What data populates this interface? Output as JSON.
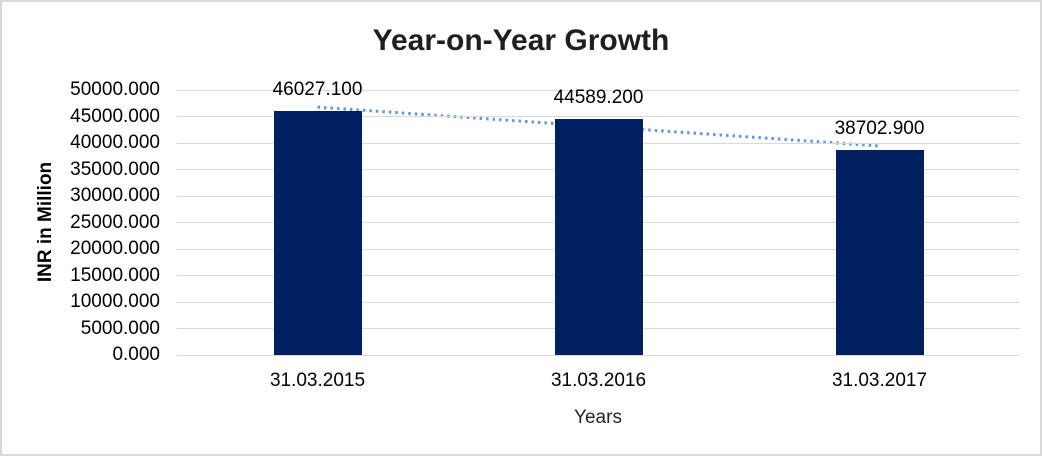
{
  "chart_data": {
    "type": "bar",
    "title": "Year-on-Year Growth",
    "xlabel": "Years",
    "ylabel": "INR in Million",
    "categories": [
      "31.03.2015",
      "31.03.2016",
      "31.03.2017"
    ],
    "values": [
      46027.1,
      44589.2,
      38702.9
    ],
    "data_labels": [
      "46027.100",
      "44589.200",
      "38702.900"
    ],
    "ylim": [
      0,
      50000
    ],
    "ytick_step": 5000,
    "ytick_labels": [
      "0.000",
      "5000.000",
      "10000.000",
      "15000.000",
      "20000.000",
      "25000.000",
      "30000.000",
      "35000.000",
      "40000.000",
      "45000.000",
      "50000.000"
    ],
    "grid": "horizontal",
    "legend": "none",
    "trendline": {
      "style": "dotted",
      "fit": "linear",
      "endpoint_values": [
        46768.5,
        39444.3
      ]
    },
    "colors": {
      "bar": "#002060",
      "trend": "#6496d2",
      "gridline": "#d9d9d9",
      "title_text": "#1f1f1f",
      "axis_text": "#000000",
      "frame_border": "#d9d9d9",
      "background": "#ffffff"
    }
  }
}
